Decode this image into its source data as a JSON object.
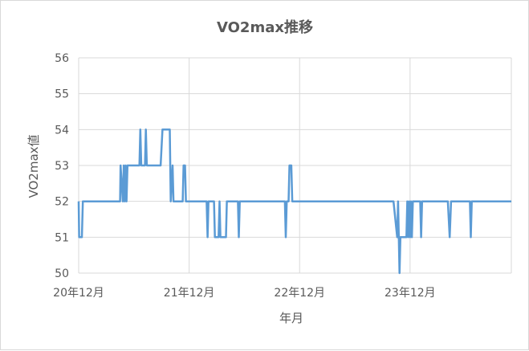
{
  "chart_data": {
    "type": "line",
    "title": "VO2max推移",
    "xlabel": "年月",
    "ylabel": "VO2max値",
    "ylim": [
      50,
      56
    ],
    "xlim": [
      0,
      47
    ],
    "yticks": [
      "50",
      "51",
      "52",
      "53",
      "54",
      "55",
      "56"
    ],
    "xticks": [
      {
        "label": "20年12月",
        "x": 0
      },
      {
        "label": "21年12月",
        "x": 12
      },
      {
        "label": "22年12月",
        "x": 24
      },
      {
        "label": "23年12月",
        "x": 36
      }
    ],
    "grid": true,
    "legend": "none",
    "colors": {
      "line": "#5b9bd5",
      "grid": "#d9d9d9",
      "text": "#595959"
    },
    "series": [
      {
        "values": [
          [
            0,
            52
          ],
          [
            0.05,
            51
          ],
          [
            0.35,
            51
          ],
          [
            0.45,
            52
          ],
          [
            4.5,
            52
          ],
          [
            4.55,
            53
          ],
          [
            4.8,
            52
          ],
          [
            4.9,
            53
          ],
          [
            5.0,
            52
          ],
          [
            5.1,
            53
          ],
          [
            5.2,
            52
          ],
          [
            5.3,
            53
          ],
          [
            6.6,
            53
          ],
          [
            6.7,
            54
          ],
          [
            6.8,
            53
          ],
          [
            7.2,
            53
          ],
          [
            7.3,
            54
          ],
          [
            7.4,
            53
          ],
          [
            8.9,
            53
          ],
          [
            9.1,
            54
          ],
          [
            9.9,
            54
          ],
          [
            10.0,
            52
          ],
          [
            10.2,
            53
          ],
          [
            10.3,
            52
          ],
          [
            11.3,
            52
          ],
          [
            11.4,
            53
          ],
          [
            11.55,
            53
          ],
          [
            11.65,
            52
          ],
          [
            13.9,
            52
          ],
          [
            14.0,
            51
          ],
          [
            14.1,
            52
          ],
          [
            14.7,
            52
          ],
          [
            14.8,
            51
          ],
          [
            15.2,
            51
          ],
          [
            15.3,
            52
          ],
          [
            15.4,
            51
          ],
          [
            16.0,
            51
          ],
          [
            16.1,
            52
          ],
          [
            17.3,
            52
          ],
          [
            17.4,
            51
          ],
          [
            17.5,
            52
          ],
          [
            22.4,
            52
          ],
          [
            22.5,
            51
          ],
          [
            22.6,
            52
          ],
          [
            22.8,
            52
          ],
          [
            22.9,
            53
          ],
          [
            23.1,
            53
          ],
          [
            23.2,
            52
          ],
          [
            34.2,
            52
          ],
          [
            34.6,
            51
          ],
          [
            34.7,
            52
          ],
          [
            34.85,
            50
          ],
          [
            34.95,
            51
          ],
          [
            35.6,
            51
          ],
          [
            35.7,
            52
          ],
          [
            35.8,
            51
          ],
          [
            35.9,
            52
          ],
          [
            36.0,
            51
          ],
          [
            36.1,
            52
          ],
          [
            36.2,
            51
          ],
          [
            36.3,
            52
          ],
          [
            37.1,
            52
          ],
          [
            37.2,
            51
          ],
          [
            37.3,
            52
          ],
          [
            40.1,
            52
          ],
          [
            40.3,
            51
          ],
          [
            40.45,
            52
          ],
          [
            42.5,
            52
          ],
          [
            42.6,
            51
          ],
          [
            42.7,
            52
          ],
          [
            47.0,
            52
          ]
        ]
      }
    ]
  }
}
